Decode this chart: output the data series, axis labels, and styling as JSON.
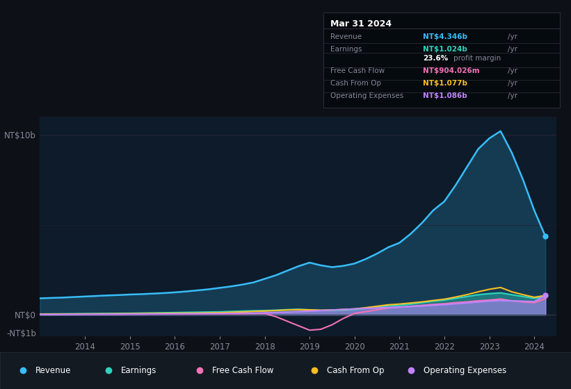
{
  "bg_color": "#0d1117",
  "plot_bg_color": "#0d1b2a",
  "legend": [
    {
      "label": "Revenue",
      "color": "#38bdf8"
    },
    {
      "label": "Earnings",
      "color": "#2dd4bf"
    },
    {
      "label": "Free Cash Flow",
      "color": "#f472b6"
    },
    {
      "label": "Cash From Op",
      "color": "#fbbf24"
    },
    {
      "label": "Operating Expenses",
      "color": "#c084fc"
    }
  ],
  "colors": {
    "revenue": "#38bdf8",
    "earnings": "#2dd4bf",
    "fcf": "#f472b6",
    "cfo": "#fbbf24",
    "opex": "#c084fc"
  },
  "x_years": [
    2013.0,
    2013.25,
    2013.5,
    2013.75,
    2014.0,
    2014.25,
    2014.5,
    2014.75,
    2015.0,
    2015.25,
    2015.5,
    2015.75,
    2016.0,
    2016.25,
    2016.5,
    2016.75,
    2017.0,
    2017.25,
    2017.5,
    2017.75,
    2018.0,
    2018.25,
    2018.5,
    2018.75,
    2019.0,
    2019.25,
    2019.5,
    2019.75,
    2020.0,
    2020.25,
    2020.5,
    2020.75,
    2021.0,
    2021.25,
    2021.5,
    2021.75,
    2022.0,
    2022.25,
    2022.5,
    2022.75,
    2023.0,
    2023.25,
    2023.5,
    2023.75,
    2024.0,
    2024.25
  ],
  "revenue": [
    0.92,
    0.94,
    0.96,
    0.99,
    1.02,
    1.05,
    1.08,
    1.1,
    1.13,
    1.15,
    1.18,
    1.21,
    1.25,
    1.3,
    1.36,
    1.42,
    1.5,
    1.58,
    1.68,
    1.8,
    2.0,
    2.2,
    2.45,
    2.7,
    2.9,
    2.75,
    2.65,
    2.72,
    2.85,
    3.1,
    3.4,
    3.75,
    4.0,
    4.5,
    5.1,
    5.8,
    6.3,
    7.2,
    8.2,
    9.2,
    9.8,
    10.2,
    9.0,
    7.5,
    5.8,
    4.35
  ],
  "earnings": [
    0.05,
    0.055,
    0.06,
    0.065,
    0.07,
    0.075,
    0.08,
    0.085,
    0.09,
    0.1,
    0.11,
    0.12,
    0.13,
    0.14,
    0.15,
    0.16,
    0.17,
    0.19,
    0.21,
    0.23,
    0.24,
    0.26,
    0.29,
    0.31,
    0.28,
    0.25,
    0.25,
    0.27,
    0.3,
    0.36,
    0.43,
    0.5,
    0.53,
    0.6,
    0.68,
    0.76,
    0.82,
    0.92,
    1.02,
    1.12,
    1.18,
    1.22,
    1.12,
    1.02,
    0.92,
    1.024
  ],
  "free_cash_flow": [
    0.02,
    0.02,
    0.025,
    0.025,
    0.03,
    0.03,
    0.03,
    0.03,
    0.035,
    0.035,
    0.04,
    0.04,
    0.045,
    0.045,
    0.048,
    0.05,
    0.055,
    0.06,
    0.065,
    0.07,
    0.08,
    -0.1,
    -0.35,
    -0.6,
    -0.85,
    -0.8,
    -0.55,
    -0.2,
    0.08,
    0.18,
    0.28,
    0.38,
    0.42,
    0.48,
    0.53,
    0.58,
    0.62,
    0.68,
    0.72,
    0.78,
    0.82,
    0.88,
    0.78,
    0.72,
    0.68,
    0.9
  ],
  "cash_from_op": [
    0.04,
    0.04,
    0.045,
    0.048,
    0.052,
    0.055,
    0.06,
    0.065,
    0.07,
    0.075,
    0.08,
    0.085,
    0.09,
    0.095,
    0.1,
    0.11,
    0.12,
    0.14,
    0.16,
    0.19,
    0.21,
    0.24,
    0.27,
    0.29,
    0.28,
    0.26,
    0.27,
    0.3,
    0.33,
    0.4,
    0.48,
    0.56,
    0.6,
    0.66,
    0.72,
    0.8,
    0.87,
    0.99,
    1.12,
    1.28,
    1.42,
    1.52,
    1.28,
    1.12,
    0.98,
    1.077
  ],
  "operating_expenses": [
    0.025,
    0.025,
    0.028,
    0.03,
    0.033,
    0.035,
    0.038,
    0.04,
    0.043,
    0.045,
    0.048,
    0.05,
    0.055,
    0.058,
    0.062,
    0.065,
    0.07,
    0.08,
    0.09,
    0.1,
    0.115,
    0.135,
    0.155,
    0.185,
    0.21,
    0.24,
    0.27,
    0.3,
    0.33,
    0.36,
    0.385,
    0.41,
    0.435,
    0.465,
    0.5,
    0.535,
    0.57,
    0.62,
    0.67,
    0.72,
    0.77,
    0.8,
    0.78,
    0.76,
    0.74,
    1.086
  ],
  "ylim": [
    -1.2,
    11.0
  ],
  "xlim": [
    2013.0,
    2024.5
  ],
  "xticks": [
    2014,
    2015,
    2016,
    2017,
    2018,
    2019,
    2020,
    2021,
    2022,
    2023,
    2024
  ],
  "ytick_positions": [
    -1.0,
    0.0,
    10.0
  ],
  "ytick_labels": [
    "-NT$1b",
    "NT$0",
    "NT$10b"
  ],
  "tooltip": {
    "title": "Mar 31 2024",
    "rows": [
      {
        "label": "Revenue",
        "value": "NT$4.346b",
        "color": "#38bdf8"
      },
      {
        "label": "Earnings",
        "value": "NT$1.024b",
        "color": "#2dd4bf"
      },
      {
        "label": "",
        "value": "23.6% profit margin",
        "color": "#ffffff"
      },
      {
        "label": "Free Cash Flow",
        "value": "NT$904.026m",
        "color": "#f472b6"
      },
      {
        "label": "Cash From Op",
        "value": "NT$1.077b",
        "color": "#fbbf24"
      },
      {
        "label": "Operating Expenses",
        "value": "NT$1.086b",
        "color": "#c084fc"
      }
    ]
  }
}
